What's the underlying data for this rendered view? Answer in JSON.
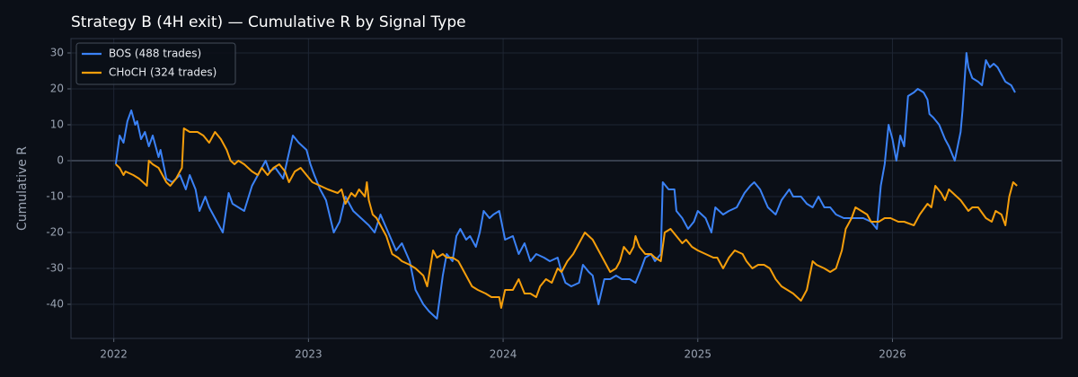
{
  "chart_data": {
    "type": "line",
    "title": "Strategy B (4H exit) — Cumulative R by Signal Type",
    "y_label": "Cumulative R",
    "xlim": [
      2021.78,
      2026.87
    ],
    "xticks": [
      2022,
      2023,
      2024,
      2025,
      2026
    ],
    "ylim": [
      -49.5,
      34
    ],
    "yticks": [
      -40,
      -30,
      -20,
      -10,
      0,
      10,
      20,
      30
    ],
    "grid": true,
    "reference_line": 0,
    "legend": "upper left",
    "series": [
      {
        "name": "BOS (488 trades)",
        "color": "#3b82f6",
        "x": [
          2022.01,
          2022.03,
          2022.05,
          2022.07,
          2022.09,
          2022.11,
          2022.12,
          2022.14,
          2022.16,
          2022.18,
          2022.2,
          2022.23,
          2022.24,
          2022.27,
          2022.3,
          2022.34,
          2022.37,
          2022.39,
          2022.42,
          2022.44,
          2022.47,
          2022.49,
          2022.53,
          2022.56,
          2022.59,
          2022.61,
          2022.64,
          2022.67,
          2022.71,
          2022.75,
          2022.78,
          2022.8,
          2022.83,
          2022.87,
          2022.92,
          2022.95,
          2022.99,
          2023.01,
          2023.03,
          2023.06,
          2023.09,
          2023.13,
          2023.16,
          2023.19,
          2023.23,
          2023.27,
          2023.31,
          2023.34,
          2023.37,
          2023.41,
          2023.45,
          2023.48,
          2023.52,
          2023.55,
          2023.59,
          2023.62,
          2023.66,
          2023.69,
          2023.71,
          2023.74,
          2023.76,
          2023.78,
          2023.81,
          2023.83,
          2023.86,
          2023.88,
          2023.9,
          2023.93,
          2023.95,
          2023.98,
          2024.01,
          2024.05,
          2024.08,
          2024.11,
          2024.14,
          2024.17,
          2024.21,
          2024.24,
          2024.28,
          2024.3,
          2024.32,
          2024.35,
          2024.39,
          2024.41,
          2024.44,
          2024.46,
          2024.49,
          2024.52,
          2024.55,
          2024.58,
          2024.61,
          2024.65,
          2024.68,
          2024.71,
          2024.73,
          2024.76,
          2024.78,
          2024.81,
          2024.82,
          2024.85,
          2024.88,
          2024.89,
          2024.92,
          2024.95,
          2024.98,
          2025.0,
          2025.04,
          2025.07,
          2025.09,
          2025.13,
          2025.16,
          2025.2,
          2025.23,
          2025.24,
          2025.27,
          2025.29,
          2025.32,
          2025.36,
          2025.4,
          2025.43,
          2025.47,
          2025.49,
          2025.53,
          2025.56,
          2025.59,
          2025.62,
          2025.65,
          2025.68,
          2025.71,
          2025.75,
          2025.79,
          2025.82,
          2025.85,
          2025.89,
          2025.92,
          2025.94,
          2025.96,
          2025.98,
          2026.0,
          2026.02,
          2026.04,
          2026.06,
          2026.08,
          2026.11,
          2026.13,
          2026.16,
          2026.18,
          2026.19,
          2026.21,
          2026.24,
          2026.27,
          2026.29,
          2026.32,
          2026.35,
          2026.36,
          2026.38,
          2026.39,
          2026.41,
          2026.44,
          2026.46,
          2026.48,
          2026.5,
          2026.52,
          2026.54,
          2026.56,
          2026.58,
          2026.61,
          2026.63
        ],
        "values": [
          -1,
          7,
          5,
          11,
          14,
          10,
          11,
          6,
          8,
          4,
          7,
          1,
          3,
          -5,
          -6,
          -4,
          -8,
          -4,
          -8,
          -14,
          -10,
          -13,
          -17,
          -20,
          -9,
          -12,
          -13,
          -14,
          -7,
          -3,
          0,
          -3,
          -2,
          -5,
          7,
          5,
          3,
          -1,
          -4,
          -8,
          -11,
          -20,
          -17,
          -10,
          -14,
          -16,
          -18,
          -20,
          -15,
          -20,
          -25,
          -23,
          -28,
          -36,
          -40,
          -42,
          -44,
          -32,
          -26,
          -28,
          -21,
          -19,
          -22,
          -21,
          -24,
          -20,
          -14,
          -16,
          -15,
          -14,
          -22,
          -21,
          -26,
          -23,
          -28,
          -26,
          -27,
          -28,
          -27,
          -31,
          -34,
          -35,
          -34,
          -29,
          -31,
          -32,
          -40,
          -33,
          -33,
          -32,
          -33,
          -33,
          -34,
          -30,
          -27,
          -26,
          -28,
          -26,
          -6,
          -8,
          -8,
          -14,
          -16,
          -19,
          -17,
          -14,
          -16,
          -20,
          -13,
          -15,
          -14,
          -13,
          -10,
          -9,
          -7,
          -6,
          -8,
          -13,
          -15,
          -11,
          -8,
          -10,
          -10,
          -12,
          -13,
          -10,
          -13,
          -13,
          -15,
          -16,
          -16,
          -16,
          -16,
          -17,
          -19,
          -7,
          -1,
          10,
          6,
          0,
          7,
          4,
          18,
          19,
          20,
          19,
          17,
          13,
          12,
          10,
          6,
          4,
          0,
          8,
          14,
          30,
          26,
          23,
          22,
          21,
          28,
          26,
          27,
          26,
          24,
          22,
          21,
          19
        ]
      },
      {
        "name": "CHoCH (324 trades)",
        "color": "#f59e0b",
        "x": [
          2022.01,
          2022.03,
          2022.05,
          2022.06,
          2022.1,
          2022.13,
          2022.17,
          2022.18,
          2022.2,
          2022.23,
          2022.25,
          2022.27,
          2022.29,
          2022.32,
          2022.34,
          2022.35,
          2022.36,
          2022.39,
          2022.43,
          2022.46,
          2022.49,
          2022.52,
          2022.55,
          2022.58,
          2022.6,
          2022.62,
          2022.64,
          2022.67,
          2022.71,
          2022.74,
          2022.76,
          2022.79,
          2022.82,
          2022.85,
          2022.88,
          2022.9,
          2022.93,
          2022.96,
          2022.99,
          2023.02,
          2023.06,
          2023.1,
          2023.15,
          2023.17,
          2023.19,
          2023.22,
          2023.24,
          2023.26,
          2023.29,
          2023.3,
          2023.31,
          2023.33,
          2023.35,
          2023.38,
          2023.4,
          2023.43,
          2023.46,
          2023.48,
          2023.52,
          2023.55,
          2023.59,
          2023.61,
          2023.64,
          2023.66,
          2023.69,
          2023.71,
          2023.74,
          2023.77,
          2023.81,
          2023.84,
          2023.87,
          2023.91,
          2023.94,
          2023.98,
          2023.99,
          2024.01,
          2024.05,
          2024.08,
          2024.11,
          2024.14,
          2024.17,
          2024.19,
          2024.22,
          2024.25,
          2024.28,
          2024.3,
          2024.33,
          2024.36,
          2024.39,
          2024.42,
          2024.46,
          2024.49,
          2024.53,
          2024.55,
          2024.58,
          2024.6,
          2024.62,
          2024.65,
          2024.67,
          2024.68,
          2024.7,
          2024.73,
          2024.76,
          2024.78,
          2024.81,
          2024.83,
          2024.86,
          2024.89,
          2024.92,
          2024.94,
          2024.97,
          2025.0,
          2025.04,
          2025.08,
          2025.1,
          2025.13,
          2025.16,
          2025.19,
          2025.23,
          2025.25,
          2025.28,
          2025.31,
          2025.34,
          2025.37,
          2025.4,
          2025.43,
          2025.46,
          2025.49,
          2025.53,
          2025.56,
          2025.59,
          2025.61,
          2025.65,
          2025.68,
          2025.71,
          2025.74,
          2025.76,
          2025.79,
          2025.81,
          2025.84,
          2025.87,
          2025.89,
          2025.93,
          2025.96,
          2025.99,
          2026.03,
          2026.06,
          2026.11,
          2026.14,
          2026.18,
          2026.2,
          2026.22,
          2026.25,
          2026.27,
          2026.29,
          2026.31,
          2026.35,
          2026.39,
          2026.41,
          2026.44,
          2026.48,
          2026.51,
          2026.53,
          2026.56,
          2026.58,
          2026.6,
          2026.62,
          2026.64
        ],
        "values": [
          -1,
          -2,
          -4,
          -3,
          -4,
          -5,
          -7,
          0,
          -1,
          -2,
          -4,
          -6,
          -7,
          -5,
          -3,
          -2,
          9,
          8,
          8,
          7,
          5,
          8,
          6,
          3,
          0,
          -1,
          0,
          -1,
          -3,
          -4,
          -2,
          -4,
          -2,
          -1,
          -3,
          -6,
          -3,
          -2,
          -4,
          -6,
          -7,
          -8,
          -9,
          -8,
          -12,
          -9,
          -10,
          -8,
          -10,
          -6,
          -11,
          -15,
          -16,
          -19,
          -21,
          -26,
          -27,
          -28,
          -29,
          -30,
          -32,
          -35,
          -25,
          -27,
          -26,
          -27,
          -27,
          -28,
          -32,
          -35,
          -36,
          -37,
          -38,
          -38,
          -41,
          -36,
          -36,
          -33,
          -37,
          -37,
          -38,
          -35,
          -33,
          -34,
          -30,
          -31,
          -28,
          -26,
          -23,
          -20,
          -22,
          -25,
          -29,
          -31,
          -30,
          -28,
          -24,
          -26,
          -24,
          -21,
          -24,
          -26,
          -26,
          -27,
          -28,
          -20,
          -19,
          -21,
          -23,
          -22,
          -24,
          -25,
          -26,
          -27,
          -27,
          -30,
          -27,
          -25,
          -26,
          -28,
          -30,
          -29,
          -29,
          -30,
          -33,
          -35,
          -36,
          -37,
          -39,
          -36,
          -28,
          -29,
          -30,
          -31,
          -30,
          -25,
          -19,
          -16,
          -13,
          -14,
          -15,
          -17,
          -17,
          -16,
          -16,
          -17,
          -17,
          -18,
          -15,
          -12,
          -13,
          -7,
          -9,
          -11,
          -8,
          -9,
          -11,
          -14,
          -13,
          -13,
          -16,
          -17,
          -14,
          -15,
          -18,
          -10,
          -6,
          -7
        ]
      }
    ]
  }
}
